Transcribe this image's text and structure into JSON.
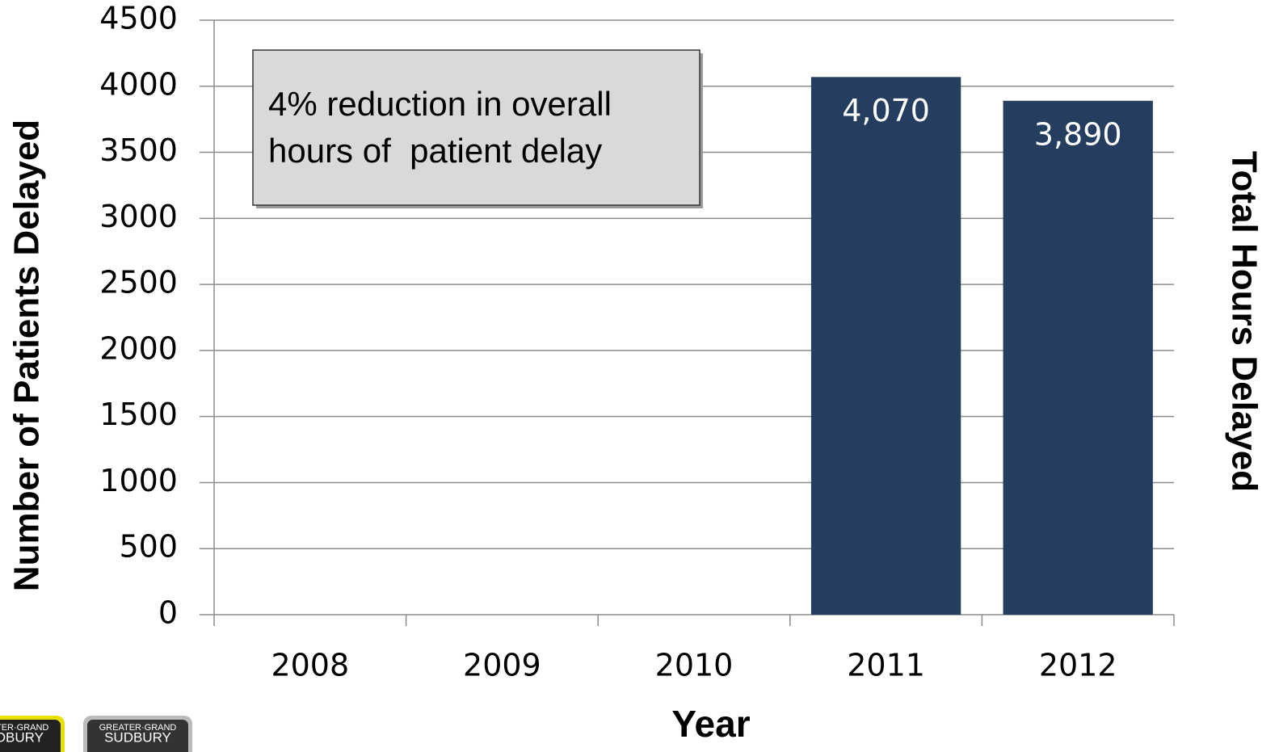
{
  "chart_data": {
    "type": "bar",
    "xlabel": "Year",
    "ylabel": "Number of Patients Delayed",
    "y2label": "Total Hours Delayed",
    "annotation": [
      "4% reduction in overall",
      "hours of  patient delay"
    ],
    "categories": [
      "2008",
      "2009",
      "2010",
      "2011",
      "2012"
    ],
    "values": [
      null,
      null,
      null,
      4070,
      3890
    ],
    "value_labels": [
      null,
      null,
      null,
      "4,070",
      "3,890"
    ],
    "color": "#253d5e",
    "ylim": [
      0,
      4500
    ],
    "yticks": [
      0,
      500,
      1000,
      1500,
      2000,
      2500,
      3000,
      3500,
      4000,
      4500
    ],
    "grid": true,
    "logos": [
      [
        "GREATER·GRAND",
        "SUDBURY"
      ],
      [
        "GREATER·GRAND",
        "SUDBURY"
      ]
    ]
  }
}
